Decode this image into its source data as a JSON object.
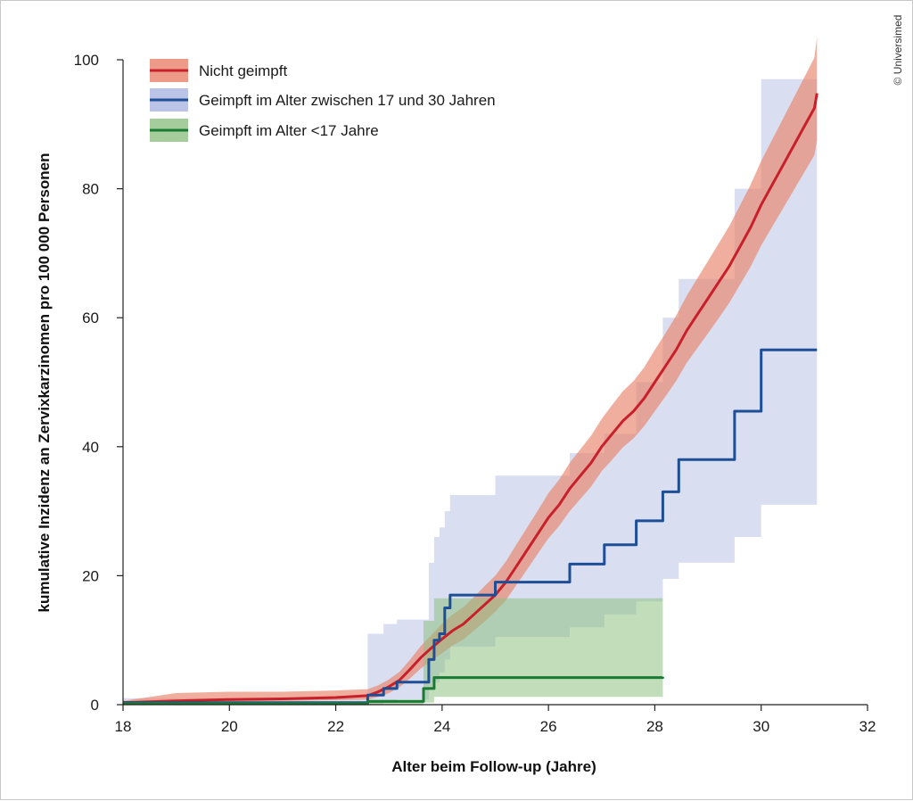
{
  "copyright": "© Universimed",
  "chart_data": {
    "type": "line",
    "step": true,
    "xlabel": "Alter beim Follow-up (Jahre)",
    "ylabel": "kumulative Inzidenz an Zervixkarzinomen pro 100 000 Personen",
    "xlim": [
      18,
      32
    ],
    "ylim": [
      0,
      100
    ],
    "xticks": [
      18,
      20,
      22,
      24,
      26,
      28,
      30,
      32
    ],
    "yticks": [
      0,
      20,
      40,
      60,
      80,
      100
    ],
    "grid": false,
    "legend_position": "top-left",
    "series": [
      {
        "name": "Nicht geimpft",
        "line_color": "#c8202a",
        "band_color": "#e8826a",
        "x": [
          18,
          19,
          20,
          21,
          22,
          22.6,
          22.8,
          23.0,
          23.2,
          23.4,
          23.6,
          23.8,
          24.0,
          24.2,
          24.4,
          24.6,
          24.8,
          25.0,
          25.2,
          25.4,
          25.6,
          25.8,
          26.0,
          26.2,
          26.4,
          26.6,
          26.8,
          27.0,
          27.2,
          27.4,
          27.6,
          27.8,
          28.0,
          28.2,
          28.4,
          28.6,
          28.8,
          29.0,
          29.2,
          29.4,
          29.6,
          29.8,
          30.0,
          30.2,
          30.4,
          30.6,
          30.8,
          31.0,
          31.05
        ],
        "y": [
          0.3,
          0.6,
          0.8,
          0.9,
          1.1,
          1.4,
          2.0,
          2.8,
          3.8,
          5.5,
          7.3,
          8.8,
          10.2,
          11.5,
          12.5,
          14.0,
          15.5,
          17.0,
          19.0,
          21.5,
          24.0,
          26.5,
          29.0,
          31.0,
          33.5,
          35.5,
          37.5,
          40.0,
          42.0,
          44.0,
          45.5,
          47.5,
          50.0,
          52.5,
          55.0,
          58.0,
          60.5,
          63.0,
          65.5,
          68.0,
          71.0,
          74.0,
          77.5,
          80.5,
          83.5,
          86.5,
          89.5,
          92.5,
          94.8
        ],
        "lower": [
          0.1,
          0.3,
          0.5,
          0.6,
          0.7,
          0.8,
          1.2,
          1.8,
          2.7,
          4.1,
          5.6,
          6.8,
          8.0,
          9.2,
          10.1,
          11.5,
          12.9,
          14.4,
          16.2,
          18.6,
          21.0,
          23.4,
          25.8,
          27.7,
          30.0,
          31.9,
          33.8,
          36.2,
          38.0,
          39.9,
          41.3,
          43.2,
          45.5,
          47.8,
          50.2,
          53.0,
          55.3,
          57.6,
          59.9,
          62.3,
          65.1,
          67.9,
          71.2,
          74.0,
          76.8,
          79.6,
          82.4,
          85.2,
          87.5
        ],
        "upper": [
          0.6,
          1.8,
          2.0,
          2.0,
          2.2,
          2.4,
          3.0,
          3.9,
          5.1,
          7.0,
          9.1,
          10.8,
          12.6,
          14.0,
          15.1,
          16.7,
          18.4,
          20.0,
          22.2,
          24.9,
          27.5,
          30.1,
          32.8,
          34.9,
          37.5,
          39.6,
          41.7,
          44.3,
          46.5,
          48.6,
          50.2,
          52.3,
          55.0,
          57.6,
          60.3,
          63.4,
          66.1,
          68.8,
          71.5,
          74.2,
          77.4,
          80.6,
          84.3,
          87.5,
          90.7,
          93.9,
          97.1,
          100.3,
          103.5
        ]
      },
      {
        "name": "Geimpft im Alter zwischen 17 und 30 Jahren",
        "line_color": "#1d4e96",
        "band_color": "#aab5e0",
        "x": [
          18,
          22.6,
          22.9,
          23.15,
          23.75,
          23.85,
          23.95,
          24.05,
          24.15,
          25.0,
          26.4,
          27.05,
          27.65,
          28.15,
          28.45,
          29.5,
          30.0,
          31.05
        ],
        "y": [
          0.3,
          1.5,
          2.5,
          3.5,
          7.0,
          10.0,
          11.0,
          15.0,
          17.0,
          19.0,
          21.8,
          24.8,
          28.5,
          33.0,
          38.0,
          45.5,
          55.0,
          55.0
        ],
        "lower": [
          0.0,
          0.0,
          0.3,
          0.8,
          2.5,
          3.5,
          5.0,
          7.0,
          9.0,
          10.5,
          12.0,
          14.0,
          16.0,
          19.5,
          22.0,
          26.0,
          31.0,
          31.0
        ],
        "upper": [
          1.0,
          11.0,
          12.5,
          13.2,
          22.0,
          26.0,
          27.5,
          30.0,
          32.5,
          35.5,
          39.0,
          42.0,
          50.0,
          60.0,
          66.0,
          80.0,
          97.0,
          97.0
        ]
      },
      {
        "name": "Geimpft im Alter <17 Jahre",
        "line_color": "#1a7a33",
        "band_color": "#8ec182",
        "x": [
          18,
          22.6,
          23.65,
          23.85,
          28.15
        ],
        "y": [
          0.2,
          0.5,
          2.5,
          4.2,
          4.3
        ],
        "lower": [
          0.0,
          0.0,
          0.3,
          1.2,
          1.2
        ],
        "upper": [
          0.5,
          0.8,
          13.0,
          16.5,
          16.5
        ]
      }
    ]
  }
}
